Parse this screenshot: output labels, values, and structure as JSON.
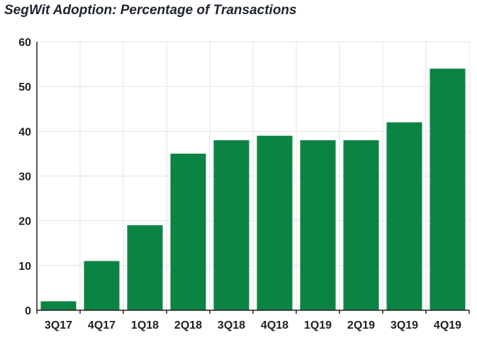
{
  "chart_data": {
    "type": "bar",
    "title": "SegWit Adoption: Percentage of Transactions",
    "categories": [
      "3Q17",
      "4Q17",
      "1Q18",
      "2Q18",
      "3Q18",
      "4Q18",
      "1Q19",
      "2Q19",
      "3Q19",
      "4Q19"
    ],
    "values": [
      2,
      11,
      19,
      35,
      38,
      39,
      38,
      38,
      42,
      54
    ],
    "ylim": [
      0,
      60
    ],
    "yticks": [
      0,
      10,
      20,
      30,
      40,
      50,
      60
    ],
    "grid": true,
    "legend": "none",
    "bar_color": "#0b8443",
    "grid_color": "#e3e3e3",
    "axis_color": "#222222"
  }
}
